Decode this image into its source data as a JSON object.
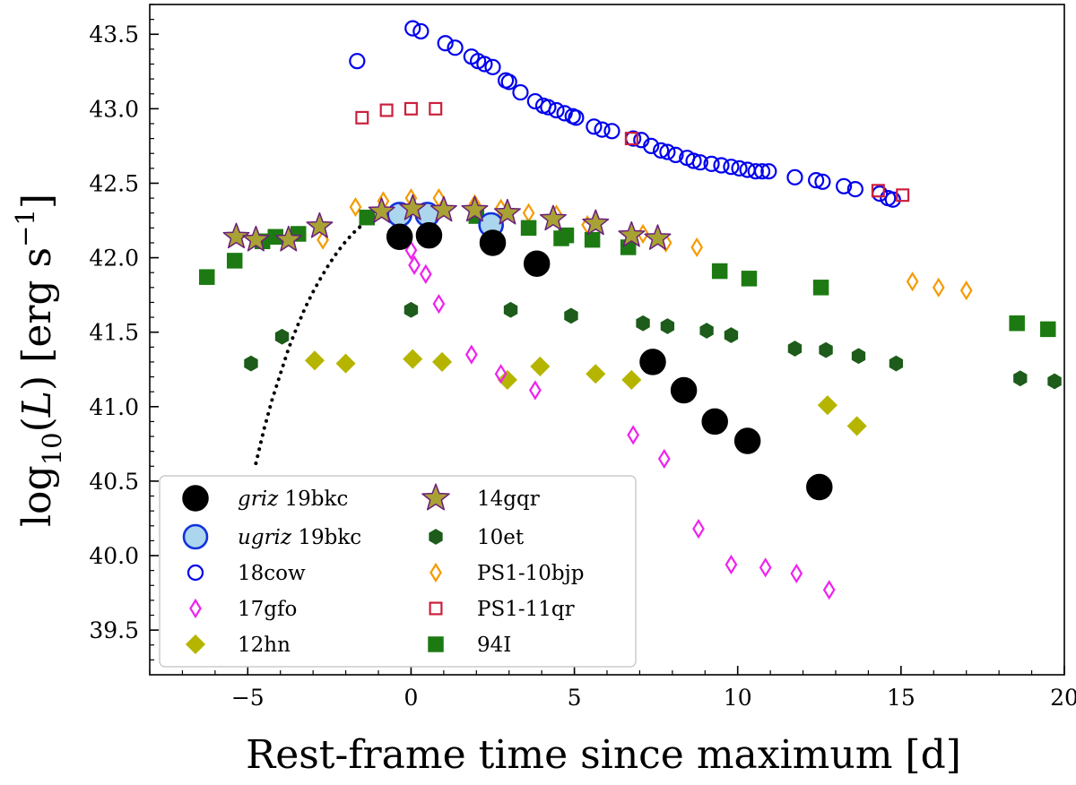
{
  "chart_data": {
    "type": "scatter",
    "title": "",
    "xlabel": "Rest-frame time since maximum [d]",
    "ylabel_parts": [
      "log",
      "10",
      "(",
      "L",
      ") [erg s",
      "−1",
      "]"
    ],
    "xlim": [
      -8,
      20
    ],
    "ylim": [
      39.2,
      43.7
    ],
    "xticks": [
      -5,
      0,
      5,
      10,
      15,
      20
    ],
    "xtick_labels": [
      "−5",
      "0",
      "5",
      "10",
      "15",
      "20"
    ],
    "yticks": [
      39.5,
      40.0,
      40.5,
      41.0,
      41.5,
      42.0,
      42.5,
      43.0,
      43.5
    ],
    "ytick_labels": [
      "39.5",
      "40.0",
      "40.5",
      "41.0",
      "41.5",
      "42.0",
      "42.5",
      "43.0",
      "43.5"
    ],
    "legend_position": "lower-left",
    "model_curve": {
      "name": "model-fit",
      "style": "dotted",
      "x": [
        -4.75,
        -4.5,
        -4.25,
        -4.0,
        -3.75,
        -3.5,
        -3.25,
        -3.0,
        -2.75,
        -2.5,
        -2.25,
        -2.0,
        -1.75,
        -1.5,
        -1.25,
        -1.0,
        -0.75,
        -0.5
      ],
      "y": [
        40.62,
        40.85,
        41.05,
        41.22,
        41.39,
        41.53,
        41.66,
        41.77,
        41.87,
        41.96,
        42.04,
        42.11,
        42.17,
        42.22,
        42.25,
        42.27,
        42.28,
        42.28
      ]
    },
    "series": [
      {
        "name": "18cow",
        "label_italic": "",
        "label_rest": "18cow",
        "marker": "circle-open",
        "color": "#0000ee",
        "fill": "none",
        "size": 8,
        "x": [
          -1.65,
          0.05,
          0.3,
          1.05,
          1.35,
          1.85,
          2.05,
          2.25,
          2.5,
          2.9,
          3.0,
          3.35,
          3.8,
          4.05,
          4.2,
          4.45,
          4.7,
          4.95,
          5.05,
          5.6,
          5.85,
          6.15,
          6.8,
          7.05,
          7.35,
          7.65,
          7.85,
          8.1,
          8.45,
          8.65,
          8.85,
          9.2,
          9.5,
          9.8,
          10.05,
          10.3,
          10.55,
          10.75,
          10.95,
          11.75,
          12.4,
          12.6,
          13.25,
          13.6,
          14.35,
          14.6,
          14.75
        ],
        "y": [
          43.32,
          43.54,
          43.52,
          43.44,
          43.41,
          43.35,
          43.32,
          43.3,
          43.28,
          43.19,
          43.18,
          43.11,
          43.05,
          43.02,
          43.01,
          42.99,
          42.97,
          42.95,
          42.94,
          42.88,
          42.86,
          42.85,
          42.8,
          42.79,
          42.75,
          42.72,
          42.71,
          42.69,
          42.67,
          42.65,
          42.64,
          42.63,
          42.62,
          42.61,
          42.6,
          42.59,
          42.58,
          42.58,
          42.58,
          42.54,
          42.52,
          42.51,
          42.48,
          42.46,
          42.43,
          42.4,
          42.39
        ]
      },
      {
        "name": "PS1-11qr",
        "label_italic": "",
        "label_rest": "PS1-11qr",
        "marker": "square-open",
        "color": "#cc1f3d",
        "fill": "none",
        "size": 8,
        "x": [
          -1.5,
          -0.75,
          0.0,
          0.75,
          6.75,
          14.3,
          15.05
        ],
        "y": [
          42.94,
          42.99,
          43.0,
          43.0,
          42.8,
          42.45,
          42.42
        ]
      },
      {
        "name": "PS1-10bjp",
        "label_italic": "",
        "label_rest": "PS1-10bjp",
        "marker": "diamond-open",
        "color": "#f59a00",
        "fill": "none",
        "size": 9,
        "x": [
          -2.7,
          -1.7,
          -0.85,
          0.0,
          0.85,
          1.95,
          2.75,
          3.6,
          4.45,
          5.4,
          7.1,
          7.8,
          8.75,
          15.35,
          16.15,
          17.0
        ],
        "y": [
          42.12,
          42.34,
          42.38,
          42.4,
          42.4,
          42.36,
          42.33,
          42.3,
          42.29,
          42.22,
          42.16,
          42.1,
          42.07,
          41.84,
          41.8,
          41.78
        ]
      },
      {
        "name": "94I",
        "label_italic": "",
        "label_rest": "94I",
        "marker": "square-filled",
        "color": "#1d7a12",
        "fill": "#1d7a12",
        "size": 10,
        "x": [
          -6.25,
          -5.4,
          -4.55,
          -4.15,
          -3.45,
          -1.35,
          2.0,
          3.6,
          4.6,
          4.75,
          5.55,
          6.65,
          9.45,
          10.35,
          12.55,
          18.55,
          19.5
        ],
        "y": [
          41.87,
          41.98,
          42.11,
          42.14,
          42.16,
          42.27,
          42.28,
          42.2,
          42.13,
          42.15,
          42.12,
          42.07,
          41.91,
          41.86,
          41.8,
          41.56,
          41.52
        ]
      },
      {
        "name": "10et",
        "label_italic": "",
        "label_rest": "10et",
        "marker": "hexagon-filled",
        "color": "#1d5c1a",
        "fill": "#1d5c1a",
        "size": 8,
        "x": [
          -4.9,
          -3.95,
          0.0,
          3.05,
          4.9,
          7.1,
          7.85,
          9.05,
          9.8,
          11.75,
          12.7,
          13.7,
          14.85,
          18.65,
          19.7
        ],
        "y": [
          41.29,
          41.47,
          41.65,
          41.65,
          41.61,
          41.56,
          41.54,
          41.51,
          41.48,
          41.39,
          41.38,
          41.34,
          41.29,
          41.19,
          41.17
        ]
      },
      {
        "name": "12hn",
        "label_italic": "",
        "label_rest": "12hn",
        "marker": "diamond-filled",
        "color": "#b5b500",
        "fill": "#b5b500",
        "size": 10,
        "x": [
          -2.95,
          -2.0,
          0.05,
          0.95,
          2.95,
          3.95,
          5.65,
          6.75,
          12.75,
          13.65
        ],
        "y": [
          41.31,
          41.29,
          41.32,
          41.3,
          41.18,
          41.27,
          41.22,
          41.18,
          41.01,
          40.87
        ]
      },
      {
        "name": "17gfo",
        "label_italic": "",
        "label_rest": "17gfo",
        "marker": "diamond-open",
        "color": "#ee22ee",
        "fill": "none",
        "size": 9,
        "x": [
          0.0,
          0.1,
          0.45,
          0.85,
          1.85,
          2.75,
          3.8,
          6.8,
          7.75,
          8.8,
          9.8,
          10.85,
          11.8,
          12.8
        ],
        "y": [
          42.05,
          41.95,
          41.89,
          41.69,
          41.35,
          41.22,
          41.11,
          40.81,
          40.65,
          40.18,
          39.94,
          39.92,
          39.88,
          39.77
        ]
      },
      {
        "name": "ugriz 19bkc",
        "label_italic": "ugriz",
        "label_rest": " 19bkc",
        "marker": "circle-filled",
        "color": "#1133dd",
        "fill": "#abd6ee",
        "size": 13,
        "x": [
          -0.35,
          0.5,
          2.45
        ],
        "y": [
          42.29,
          42.29,
          42.22
        ]
      },
      {
        "name": "14gqr",
        "label_italic": "",
        "label_rest": "14gqr",
        "marker": "star",
        "color": "#6b1f7a",
        "fill": "#a8a235",
        "size": 15,
        "x": [
          -5.35,
          -4.75,
          -3.75,
          -2.8,
          -0.9,
          0.05,
          1.0,
          1.95,
          2.95,
          4.35,
          5.65,
          6.75,
          7.55
        ],
        "y": [
          42.14,
          42.12,
          42.12,
          42.21,
          42.31,
          42.33,
          42.32,
          42.32,
          42.3,
          42.26,
          42.23,
          42.15,
          42.13
        ]
      },
      {
        "name": "griz 19bkc",
        "label_italic": "griz",
        "label_rest": " 19bkc",
        "marker": "circle-filled",
        "color": "#000000",
        "fill": "#000000",
        "size": 14,
        "x": [
          -0.35,
          0.55,
          2.5,
          3.85,
          7.4,
          8.35,
          9.3,
          10.3,
          12.5
        ],
        "y": [
          42.14,
          42.15,
          42.1,
          41.96,
          41.3,
          41.11,
          40.9,
          40.77,
          40.46
        ]
      }
    ],
    "legend_col1": [
      "griz 19bkc",
      "ugriz 19bkc",
      "18cow",
      "17gfo",
      "12hn"
    ],
    "legend_col2": [
      "14gqr",
      "10et",
      "PS1-10bjp",
      "PS1-11qr",
      "94I"
    ]
  }
}
